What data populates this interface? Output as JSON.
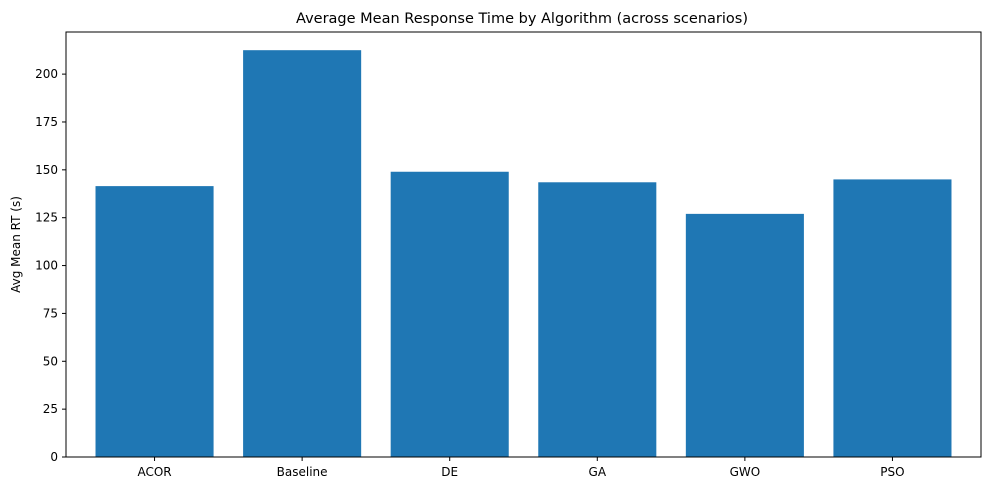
{
  "chart_data": {
    "type": "bar",
    "title": "Average Mean Response Time by Algorithm (across scenarios)",
    "xlabel": "",
    "ylabel": "Avg Mean RT (s)",
    "categories": [
      "ACOR",
      "Baseline",
      "DE",
      "GA",
      "GWO",
      "PSO"
    ],
    "values": [
      141.5,
      212.5,
      149.0,
      143.5,
      127.0,
      145.0
    ],
    "ylim": [
      0,
      222
    ],
    "yticks": [
      0,
      25,
      50,
      75,
      100,
      125,
      150,
      175,
      200
    ],
    "grid": false,
    "bar_color": "#1f77b4"
  }
}
